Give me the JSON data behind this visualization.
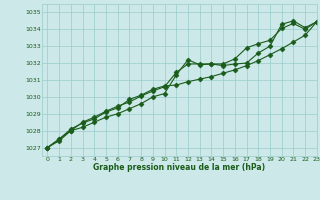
{
  "title": "Graphe pression niveau de la mer (hPa)",
  "bg_color": "#cce8e8",
  "grid_color": "#99cccc",
  "line_color": "#1a5c1a",
  "xlim": [
    -0.5,
    23
  ],
  "ylim": [
    1026.5,
    1035.5
  ],
  "yticks": [
    1027,
    1028,
    1029,
    1030,
    1031,
    1032,
    1033,
    1034,
    1035
  ],
  "xticks": [
    0,
    1,
    2,
    3,
    4,
    5,
    6,
    7,
    8,
    9,
    10,
    11,
    12,
    13,
    14,
    15,
    16,
    17,
    18,
    19,
    20,
    21,
    22,
    23
  ],
  "series1": [
    1027.0,
    1027.4,
    1028.0,
    1028.2,
    1028.5,
    1028.8,
    1029.0,
    1029.3,
    1029.6,
    1030.0,
    1030.2,
    1031.3,
    1032.2,
    1031.9,
    1031.95,
    1031.85,
    1031.95,
    1032.0,
    1032.6,
    1033.0,
    1034.3,
    1034.5,
    1034.1,
    1034.45
  ],
  "series2": [
    1027.0,
    1027.5,
    1028.1,
    1028.45,
    1028.7,
    1029.1,
    1029.35,
    1029.85,
    1030.1,
    1030.45,
    1030.65,
    1030.7,
    1030.9,
    1031.05,
    1031.2,
    1031.4,
    1031.6,
    1031.85,
    1032.15,
    1032.5,
    1032.85,
    1033.25,
    1033.65,
    1034.45
  ],
  "series3": [
    1027.0,
    1027.5,
    1028.0,
    1028.5,
    1028.8,
    1029.15,
    1029.45,
    1029.7,
    1030.05,
    1030.35,
    1030.6,
    1031.45,
    1031.95,
    1031.95,
    1031.95,
    1031.95,
    1032.25,
    1032.9,
    1033.15,
    1033.35,
    1034.05,
    1034.35,
    1034.0,
    1034.45
  ]
}
